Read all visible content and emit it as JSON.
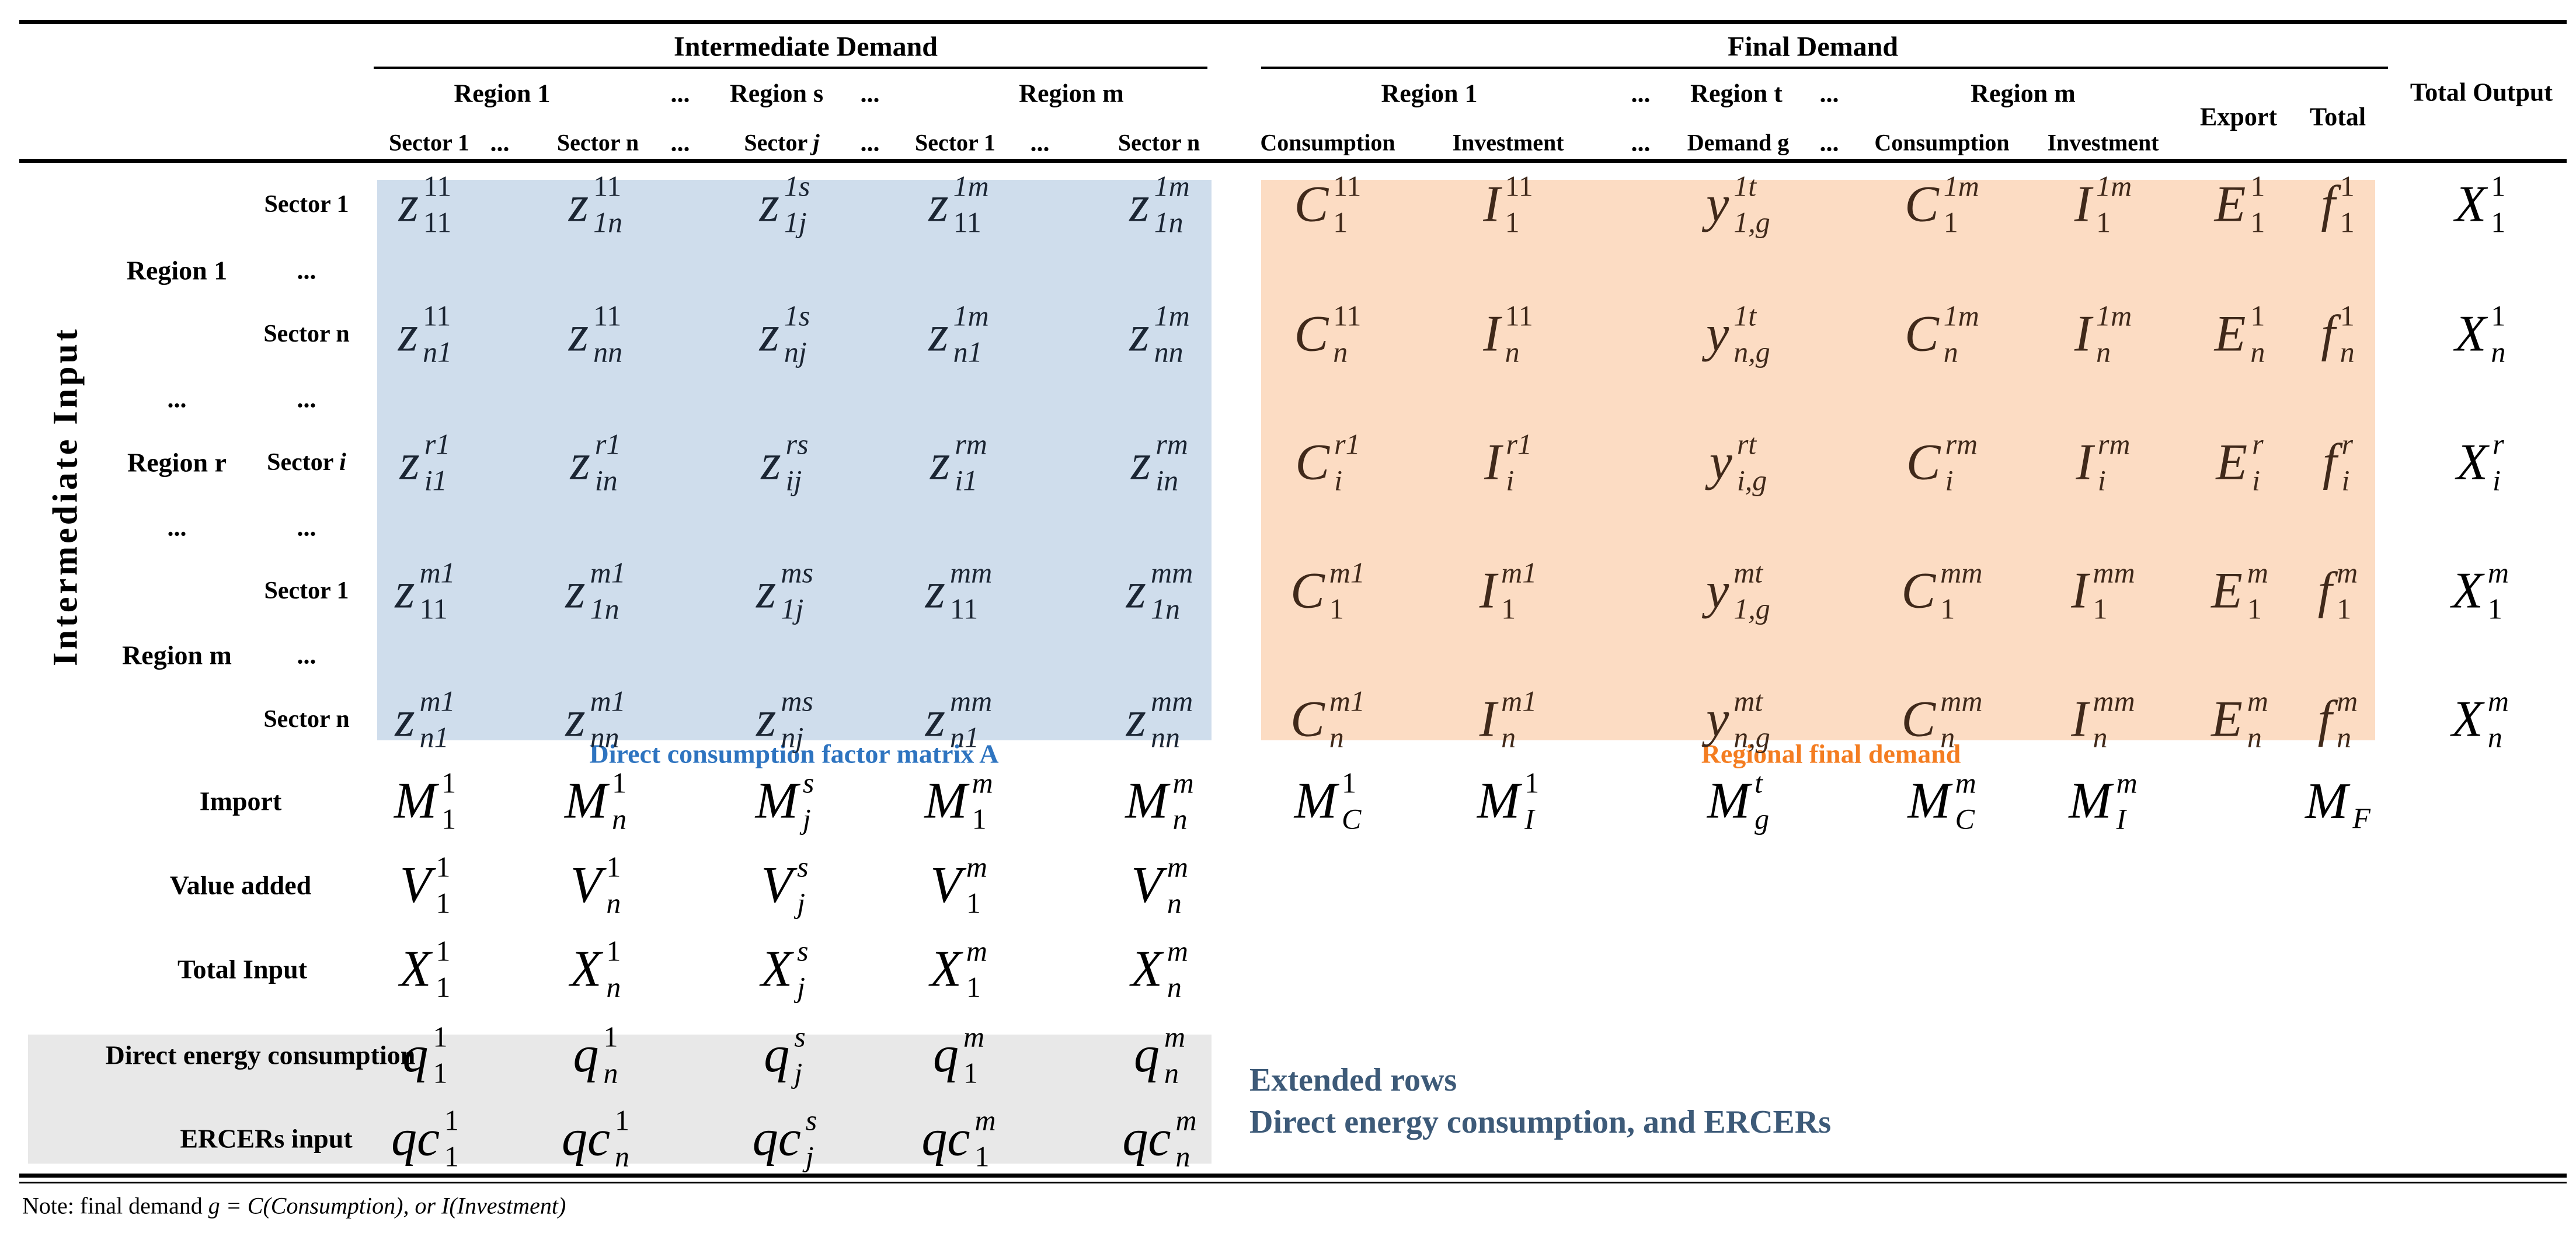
{
  "dots": "...",
  "headers": {
    "intermediate_demand": "Intermediate Demand",
    "final_demand": "Final Demand",
    "total_output": "Total Output",
    "export": "Export",
    "total": "Total",
    "region_1": "Region 1",
    "region_s": "Region s",
    "region_m": "Region m",
    "region_t": "Region t",
    "sector_1": "Sector 1",
    "sector_n": "Sector n",
    "sector_j_prefix": "Sector ",
    "sector_j_var": "j",
    "consumption": "Consumption",
    "investment": "Investment",
    "demand_g": "Demand g"
  },
  "left": {
    "axis_label": "Intermediate Input",
    "region_1": "Region 1",
    "region_r": "Region r",
    "region_m": "Region m",
    "sector_1": "Sector 1",
    "sector_n": "Sector n",
    "sector_i_prefix": "Sector ",
    "sector_i_var": "i",
    "import": "Import",
    "value_added": "Value added",
    "total_input": "Total Input",
    "direct_energy": "Direct energy consumption",
    "ercers": "ERCERs input"
  },
  "captions": {
    "matrix_a": "Direct consumption factor matrix A",
    "regional_final_demand": "Regional final demand",
    "extended_line1": "Extended rows",
    "extended_line2": "Direct energy consumption, and ERCERs"
  },
  "note": {
    "prefix": "Note: final demand ",
    "math": "g = C(Consumption), or I(Investment)"
  },
  "colors": {
    "blue_bg": "#cfddec",
    "orange_bg": "#fcdcc3",
    "gray_bg": "#e8e8e8",
    "blue_caption": "#2e74c0",
    "orange_caption": "#f47d21",
    "extended_text": "#3d5a78",
    "blue_ink": "#1b2533",
    "orange_ink": "#40291a",
    "black_ink": "#000000"
  },
  "cells": {
    "blue": [
      [
        {
          "b": "z",
          "s": "11",
          "u": "11"
        },
        {
          "b": "z",
          "s": "11",
          "u": "1n"
        },
        {
          "b": "z",
          "s": "1s",
          "u": "1j"
        },
        {
          "b": "z",
          "s": "1m",
          "u": "11"
        },
        {
          "b": "z",
          "s": "1m",
          "u": "1n"
        }
      ],
      [
        {
          "b": "z",
          "s": "11",
          "u": "n1"
        },
        {
          "b": "z",
          "s": "11",
          "u": "nn"
        },
        {
          "b": "z",
          "s": "1s",
          "u": "nj"
        },
        {
          "b": "z",
          "s": "1m",
          "u": "n1"
        },
        {
          "b": "z",
          "s": "1m",
          "u": "nn"
        }
      ],
      [
        {
          "b": "z",
          "s": "r1",
          "u": "i1"
        },
        {
          "b": "z",
          "s": "r1",
          "u": "in"
        },
        {
          "b": "z",
          "s": "rs",
          "u": "ij"
        },
        {
          "b": "z",
          "s": "rm",
          "u": "i1"
        },
        {
          "b": "z",
          "s": "rm",
          "u": "in"
        }
      ],
      [
        {
          "b": "z",
          "s": "m1",
          "u": "11"
        },
        {
          "b": "z",
          "s": "m1",
          "u": "1n"
        },
        {
          "b": "z",
          "s": "ms",
          "u": "1j"
        },
        {
          "b": "z",
          "s": "mm",
          "u": "11"
        },
        {
          "b": "z",
          "s": "mm",
          "u": "1n"
        }
      ],
      [
        {
          "b": "z",
          "s": "m1",
          "u": "n1"
        },
        {
          "b": "z",
          "s": "m1",
          "u": "nn"
        },
        {
          "b": "z",
          "s": "ms",
          "u": "nj"
        },
        {
          "b": "z",
          "s": "mm",
          "u": "n1"
        },
        {
          "b": "z",
          "s": "mm",
          "u": "nn"
        }
      ]
    ],
    "orange": [
      [
        {
          "b": "C",
          "s": "11",
          "u": "1"
        },
        {
          "b": "I",
          "s": "11",
          "u": "1"
        },
        {
          "b": "y",
          "s": "1t",
          "u": "1,g"
        },
        {
          "b": "C",
          "s": "1m",
          "u": "1"
        },
        {
          "b": "I",
          "s": "1m",
          "u": "1"
        },
        {
          "b": "E",
          "s": "1",
          "u": "1"
        },
        {
          "b": "f",
          "s": "1",
          "u": "1"
        }
      ],
      [
        {
          "b": "C",
          "s": "11",
          "u": "n"
        },
        {
          "b": "I",
          "s": "11",
          "u": "n"
        },
        {
          "b": "y",
          "s": "1t",
          "u": "n,g"
        },
        {
          "b": "C",
          "s": "1m",
          "u": "n"
        },
        {
          "b": "I",
          "s": "1m",
          "u": "n"
        },
        {
          "b": "E",
          "s": "1",
          "u": "n"
        },
        {
          "b": "f",
          "s": "1",
          "u": "n"
        }
      ],
      [
        {
          "b": "C",
          "s": "r1",
          "u": "i"
        },
        {
          "b": "I",
          "s": "r1",
          "u": "i"
        },
        {
          "b": "y",
          "s": "rt",
          "u": "i,g"
        },
        {
          "b": "C",
          "s": "rm",
          "u": "i"
        },
        {
          "b": "I",
          "s": "rm",
          "u": "i"
        },
        {
          "b": "E",
          "s": "r",
          "u": "i"
        },
        {
          "b": "f",
          "s": "r",
          "u": "i"
        }
      ],
      [
        {
          "b": "C",
          "s": "m1",
          "u": "1"
        },
        {
          "b": "I",
          "s": "m1",
          "u": "1"
        },
        {
          "b": "y",
          "s": "mt",
          "u": "1,g"
        },
        {
          "b": "C",
          "s": "mm",
          "u": "1"
        },
        {
          "b": "I",
          "s": "mm",
          "u": "1"
        },
        {
          "b": "E",
          "s": "m",
          "u": "1"
        },
        {
          "b": "f",
          "s": "m",
          "u": "1"
        }
      ],
      [
        {
          "b": "C",
          "s": "m1",
          "u": "n"
        },
        {
          "b": "I",
          "s": "m1",
          "u": "n"
        },
        {
          "b": "y",
          "s": "mt",
          "u": "n,g"
        },
        {
          "b": "C",
          "s": "mm",
          "u": "n"
        },
        {
          "b": "I",
          "s": "mm",
          "u": "n"
        },
        {
          "b": "E",
          "s": "m",
          "u": "n"
        },
        {
          "b": "f",
          "s": "m",
          "u": "n"
        }
      ]
    ],
    "total_output": [
      {
        "b": "X",
        "s": "1",
        "u": "1"
      },
      {
        "b": "X",
        "s": "1",
        "u": "n"
      },
      {
        "b": "X",
        "s": "r",
        "u": "i"
      },
      {
        "b": "X",
        "s": "m",
        "u": "1"
      },
      {
        "b": "X",
        "s": "m",
        "u": "n"
      }
    ],
    "import_intermediate": [
      {
        "b": "M",
        "s": "1",
        "u": "1"
      },
      {
        "b": "M",
        "s": "1",
        "u": "n"
      },
      {
        "b": "M",
        "s": "s",
        "u": "j"
      },
      {
        "b": "M",
        "s": "m",
        "u": "1"
      },
      {
        "b": "M",
        "s": "m",
        "u": "n"
      }
    ],
    "import_final": [
      {
        "b": "M",
        "s": "1",
        "u": "C"
      },
      {
        "b": "M",
        "s": "1",
        "u": "I"
      },
      {
        "b": "M",
        "s": "t",
        "u": "g"
      },
      {
        "b": "M",
        "s": "m",
        "u": "C"
      },
      {
        "b": "M",
        "s": "m",
        "u": "I"
      },
      {
        "b": "M",
        "s": "",
        "u": "F"
      }
    ],
    "value_added": [
      {
        "b": "V",
        "s": "1",
        "u": "1"
      },
      {
        "b": "V",
        "s": "1",
        "u": "n"
      },
      {
        "b": "V",
        "s": "s",
        "u": "j"
      },
      {
        "b": "V",
        "s": "m",
        "u": "1"
      },
      {
        "b": "V",
        "s": "m",
        "u": "n"
      }
    ],
    "total_input": [
      {
        "b": "X",
        "s": "1",
        "u": "1"
      },
      {
        "b": "X",
        "s": "1",
        "u": "n"
      },
      {
        "b": "X",
        "s": "s",
        "u": "j"
      },
      {
        "b": "X",
        "s": "m",
        "u": "1"
      },
      {
        "b": "X",
        "s": "m",
        "u": "n"
      }
    ],
    "energy": [
      {
        "b": "q",
        "s": "1",
        "u": "1"
      },
      {
        "b": "q",
        "s": "1",
        "u": "n"
      },
      {
        "b": "q",
        "s": "s",
        "u": "j"
      },
      {
        "b": "q",
        "s": "m",
        "u": "1"
      },
      {
        "b": "q",
        "s": "m",
        "u": "n"
      }
    ],
    "ercers": [
      {
        "b": "qc",
        "s": "1",
        "u": "1"
      },
      {
        "b": "qc",
        "s": "1",
        "u": "n"
      },
      {
        "b": "qc",
        "s": "s",
        "u": "j"
      },
      {
        "b": "qc",
        "s": "m",
        "u": "1"
      },
      {
        "b": "qc",
        "s": "m",
        "u": "n"
      }
    ]
  }
}
